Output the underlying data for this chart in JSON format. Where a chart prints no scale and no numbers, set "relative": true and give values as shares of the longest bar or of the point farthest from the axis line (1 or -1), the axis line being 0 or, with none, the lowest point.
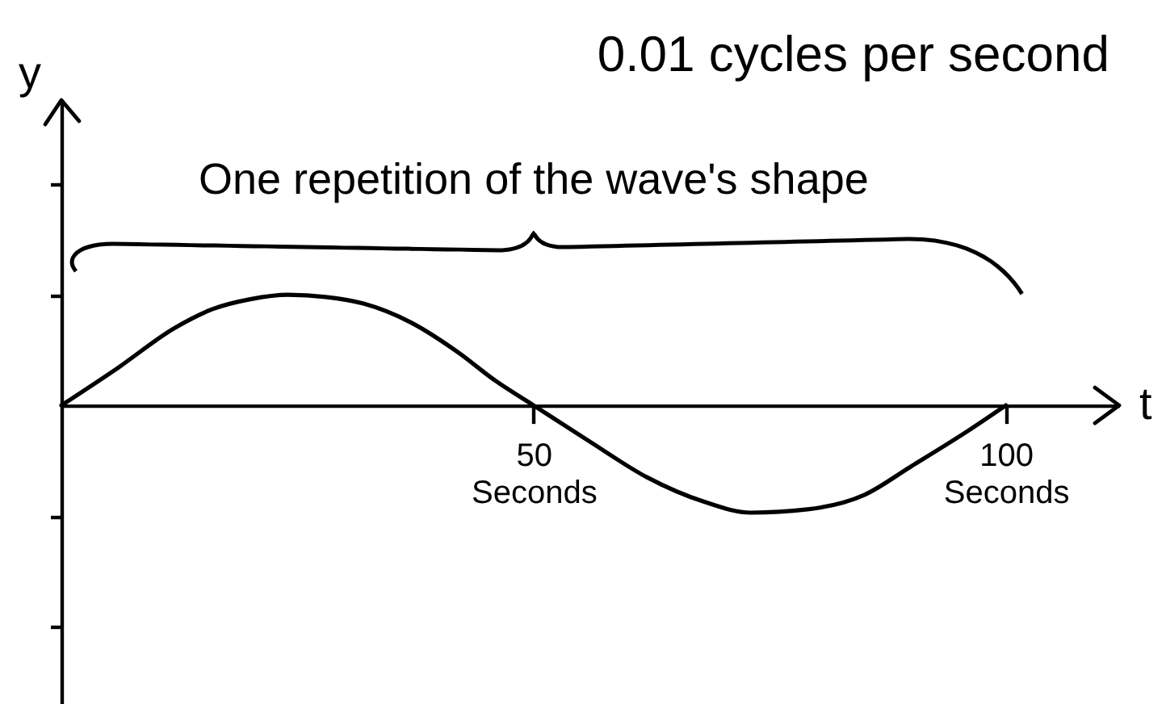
{
  "chart_data": {
    "type": "line",
    "title": "0.01 cycles per second",
    "xlabel": "t",
    "ylabel": "y",
    "annotations": [
      "One repetition of the wave's shape"
    ],
    "relative": true,
    "x": [
      0,
      6,
      12,
      16,
      20,
      24,
      28,
      32,
      37,
      42,
      46,
      50,
      56,
      62,
      68,
      73,
      79,
      85,
      90,
      96,
      100
    ],
    "series": [
      {
        "color": "#000000",
        "values": [
          0,
          0.34,
          0.7,
          0.87,
          0.96,
          1,
          0.98,
          0.92,
          0.75,
          0.48,
          0.22,
          0,
          -0.33,
          -0.65,
          -0.87,
          -0.97,
          -0.94,
          -0.81,
          -0.55,
          -0.23,
          0
        ]
      }
    ],
    "xlim": [
      0,
      112
    ],
    "xticks": [
      {
        "value": 50,
        "label": "50\nSeconds"
      },
      {
        "value": 100,
        "label": "100\nSeconds"
      }
    ]
  }
}
